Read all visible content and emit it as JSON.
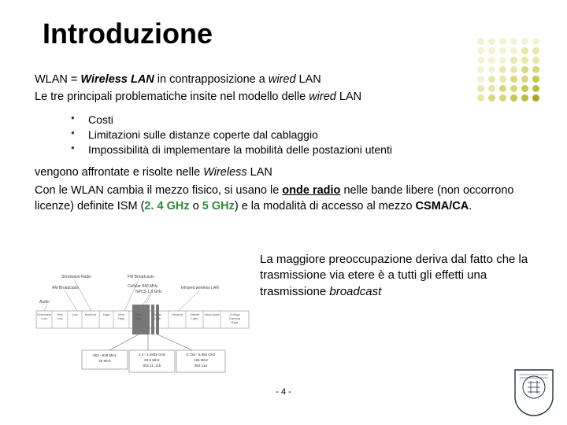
{
  "title": "Introduzione",
  "intro1_prefix": "WLAN = ",
  "intro1_wireless": "Wireless LAN",
  "intro1_mid": " in contrapposizione a ",
  "intro1_wired": "wired",
  "intro1_suffix": " LAN",
  "intro2_prefix": "Le tre principali problematiche insite nel modello delle ",
  "intro2_wired": "wired",
  "intro2_suffix": " LAN",
  "bullets": {
    "b1": "Costi",
    "b2": "Limitazioni sulle distanze coperte dal cablaggio",
    "b3": "Impossibilità di implementare la mobilità delle postazioni utenti"
  },
  "p1_prefix": "vengono affrontate e risolte nelle ",
  "p1_wireless": "Wireless",
  "p1_suffix": " LAN",
  "p2_a": "Con le WLAN cambia il mezzo fisico, si usano le ",
  "p2_onde": "onde radio",
  "p2_b": " nelle bande libere (non occorrono licenze) definite ISM (",
  "p2_24": "2. 4 GHz",
  "p2_o": " o ",
  "p2_5": "5 GHz",
  "p2_c": ") e la modalità di accesso al mezzo ",
  "p2_csma": "CSMA/CA",
  "p2_d": ".",
  "side_a": "La maggiore preoccupazione deriva dal fatto che la trasmissione via etere è a tutti gli effetti una trasmissione ",
  "side_b": "broadcast",
  "pagenum": "- 4 -",
  "dot_colors": [
    "#f3f3d4",
    "#f3f3d4",
    "#f3f3d4",
    "#f3f3d4",
    "#f3f3d4",
    "#f3f3d4",
    "#f3f3d4",
    "#f3f3d4",
    "#f3f3d4",
    "#f3f3d4",
    "#e7e7a8",
    "#e7e7a8",
    "#f3f3d4",
    "#f3f3d4",
    "#f3f3d4",
    "#e7e7a8",
    "#e7e7a8",
    "#e7e7a8",
    "#f3f3d4",
    "#f3f3d4",
    "#e7e7a8",
    "#e7e7a8",
    "#d8d87a",
    "#d8d87a",
    "#f3f3d4",
    "#e7e7a8",
    "#e7e7a8",
    "#d8d87a",
    "#d8d87a",
    "#c7c74e",
    "#e7e7a8",
    "#e7e7a8",
    "#d8d87a",
    "#d8d87a",
    "#c7c74e",
    "#bcbc38",
    "#e7e7a8",
    "#d8d87a",
    "#d8d87a",
    "#c7c74e",
    "#bcbc38",
    "#a7a720"
  ],
  "diagram": {
    "top_labels": {
      "shortwave": "Shortwave Radio",
      "fm": "FM Broadcasts",
      "am": "AM Broadcasts",
      "cellular": "Cellular 840 MHz",
      "npcs": "NPCS 1.9 GHz",
      "infrared": "Infrared wireless LAN",
      "audio": "Audio"
    },
    "band_labels": [
      "Extremely Low",
      "Very Low",
      "Low",
      "Medium",
      "High",
      "Very High",
      "Ultra High",
      "Super High",
      "Infrared",
      "Visible Light",
      "Ultra-violet",
      "X-Rays Gamma Rays"
    ],
    "callout1": {
      "range": "902 - 928 MHz",
      "bw": "26 MHz",
      "std": ""
    },
    "callout2": {
      "range": "2.4 - 2.4835 GHz",
      "bw": "83.5 MHz",
      "std": "802.11, 11b"
    },
    "callout3": {
      "range": "5.725 - 5.850 GHz",
      "bw": "125 MHz",
      "std": "802.11a"
    }
  }
}
